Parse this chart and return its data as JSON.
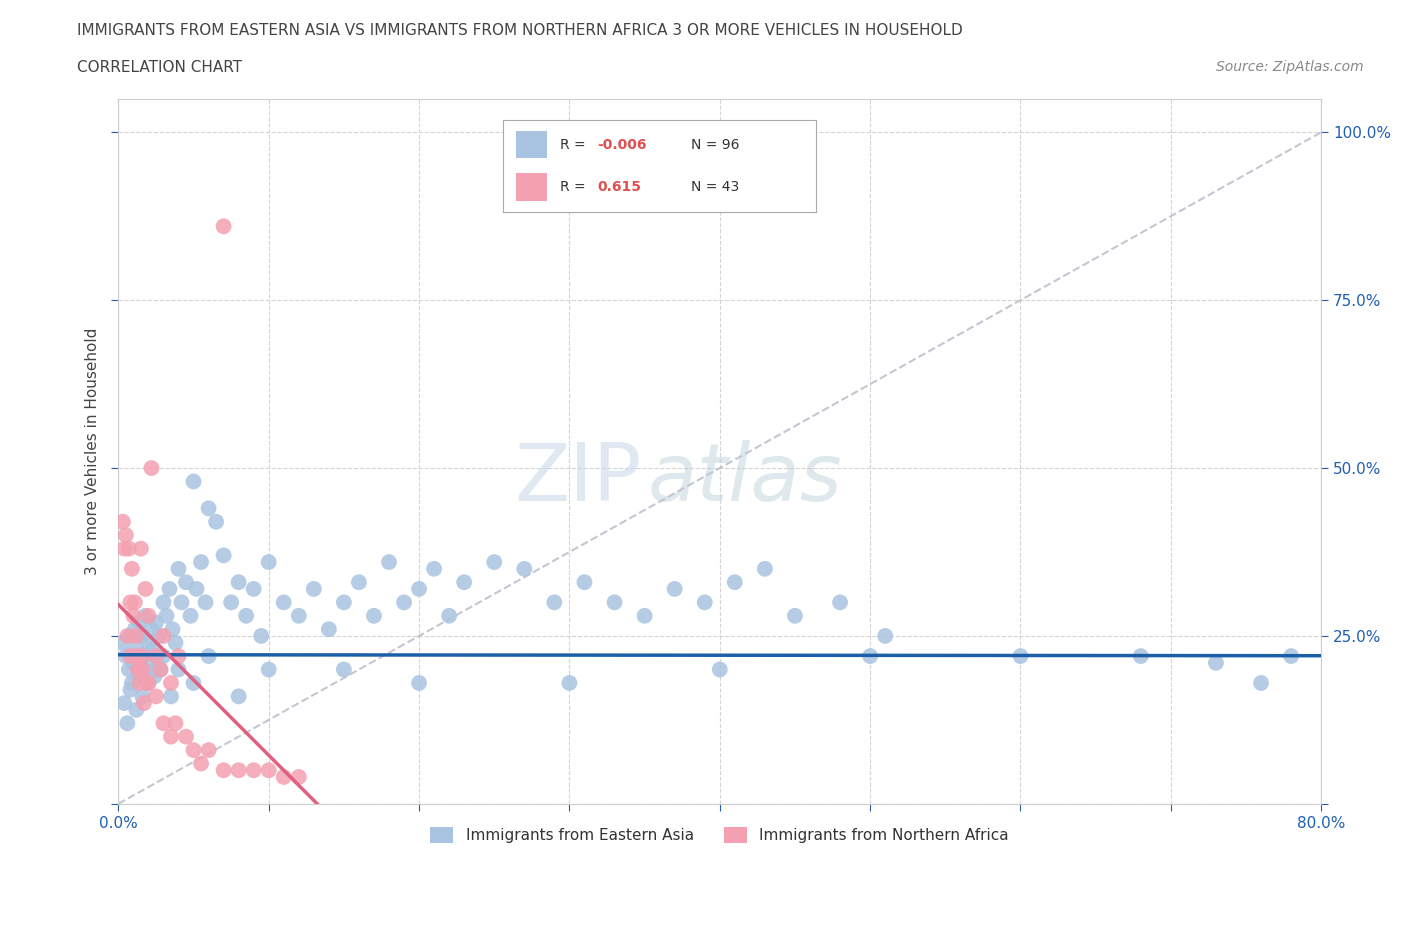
{
  "title_line1": "IMMIGRANTS FROM EASTERN ASIA VS IMMIGRANTS FROM NORTHERN AFRICA 3 OR MORE VEHICLES IN HOUSEHOLD",
  "title_line2": "CORRELATION CHART",
  "source_text": "Source: ZipAtlas.com",
  "ylabel": "3 or more Vehicles in Household",
  "xlim": [
    0.0,
    0.8
  ],
  "ylim": [
    0.0,
    1.05
  ],
  "R_blue": -0.006,
  "N_blue": 96,
  "R_pink": 0.615,
  "N_pink": 43,
  "blue_color": "#a8c4e0",
  "pink_color": "#f4a0b0",
  "blue_line_color": "#1a5fa8",
  "pink_line_color": "#e06080",
  "ref_line_color": "#b8b8c8",
  "grid_color": "#d0d0d0",
  "blue_scatter_x": [
    0.003,
    0.005,
    0.007,
    0.008,
    0.009,
    0.01,
    0.011,
    0.012,
    0.013,
    0.014,
    0.015,
    0.016,
    0.017,
    0.018,
    0.019,
    0.02,
    0.021,
    0.022,
    0.023,
    0.024,
    0.025,
    0.026,
    0.027,
    0.028,
    0.03,
    0.032,
    0.034,
    0.036,
    0.038,
    0.04,
    0.042,
    0.045,
    0.048,
    0.05,
    0.052,
    0.055,
    0.058,
    0.06,
    0.065,
    0.07,
    0.075,
    0.08,
    0.085,
    0.09,
    0.095,
    0.1,
    0.11,
    0.12,
    0.13,
    0.14,
    0.15,
    0.16,
    0.17,
    0.18,
    0.19,
    0.2,
    0.21,
    0.22,
    0.23,
    0.25,
    0.27,
    0.29,
    0.31,
    0.33,
    0.35,
    0.37,
    0.39,
    0.41,
    0.43,
    0.45,
    0.48,
    0.51,
    0.004,
    0.006,
    0.008,
    0.012,
    0.016,
    0.02,
    0.025,
    0.03,
    0.035,
    0.04,
    0.05,
    0.06,
    0.08,
    0.1,
    0.15,
    0.2,
    0.3,
    0.4,
    0.5,
    0.6,
    0.68,
    0.73,
    0.76,
    0.78
  ],
  "blue_scatter_y": [
    0.24,
    0.22,
    0.2,
    0.25,
    0.18,
    0.21,
    0.26,
    0.23,
    0.19,
    0.27,
    0.22,
    0.25,
    0.2,
    0.28,
    0.18,
    0.24,
    0.21,
    0.26,
    0.23,
    0.19,
    0.27,
    0.22,
    0.25,
    0.2,
    0.3,
    0.28,
    0.32,
    0.26,
    0.24,
    0.35,
    0.3,
    0.33,
    0.28,
    0.48,
    0.32,
    0.36,
    0.3,
    0.44,
    0.42,
    0.37,
    0.3,
    0.33,
    0.28,
    0.32,
    0.25,
    0.36,
    0.3,
    0.28,
    0.32,
    0.26,
    0.3,
    0.33,
    0.28,
    0.36,
    0.3,
    0.32,
    0.35,
    0.28,
    0.33,
    0.36,
    0.35,
    0.3,
    0.33,
    0.3,
    0.28,
    0.32,
    0.3,
    0.33,
    0.35,
    0.28,
    0.3,
    0.25,
    0.15,
    0.12,
    0.17,
    0.14,
    0.16,
    0.18,
    0.2,
    0.22,
    0.16,
    0.2,
    0.18,
    0.22,
    0.16,
    0.2,
    0.2,
    0.18,
    0.18,
    0.2,
    0.22,
    0.22,
    0.22,
    0.21,
    0.18,
    0.22
  ],
  "pink_scatter_x": [
    0.003,
    0.005,
    0.007,
    0.008,
    0.009,
    0.01,
    0.011,
    0.012,
    0.013,
    0.014,
    0.015,
    0.016,
    0.017,
    0.018,
    0.019,
    0.02,
    0.022,
    0.025,
    0.028,
    0.03,
    0.035,
    0.038,
    0.04,
    0.045,
    0.05,
    0.055,
    0.06,
    0.07,
    0.08,
    0.09,
    0.1,
    0.11,
    0.12,
    0.004,
    0.006,
    0.008,
    0.012,
    0.016,
    0.02,
    0.025,
    0.03,
    0.035,
    0.07
  ],
  "pink_scatter_y": [
    0.42,
    0.4,
    0.38,
    0.22,
    0.35,
    0.28,
    0.3,
    0.25,
    0.2,
    0.18,
    0.38,
    0.22,
    0.15,
    0.32,
    0.18,
    0.28,
    0.5,
    0.22,
    0.2,
    0.25,
    0.18,
    0.12,
    0.22,
    0.1,
    0.08,
    0.06,
    0.08,
    0.05,
    0.05,
    0.05,
    0.05,
    0.04,
    0.04,
    0.38,
    0.25,
    0.3,
    0.22,
    0.2,
    0.18,
    0.16,
    0.12,
    0.1,
    0.86
  ]
}
